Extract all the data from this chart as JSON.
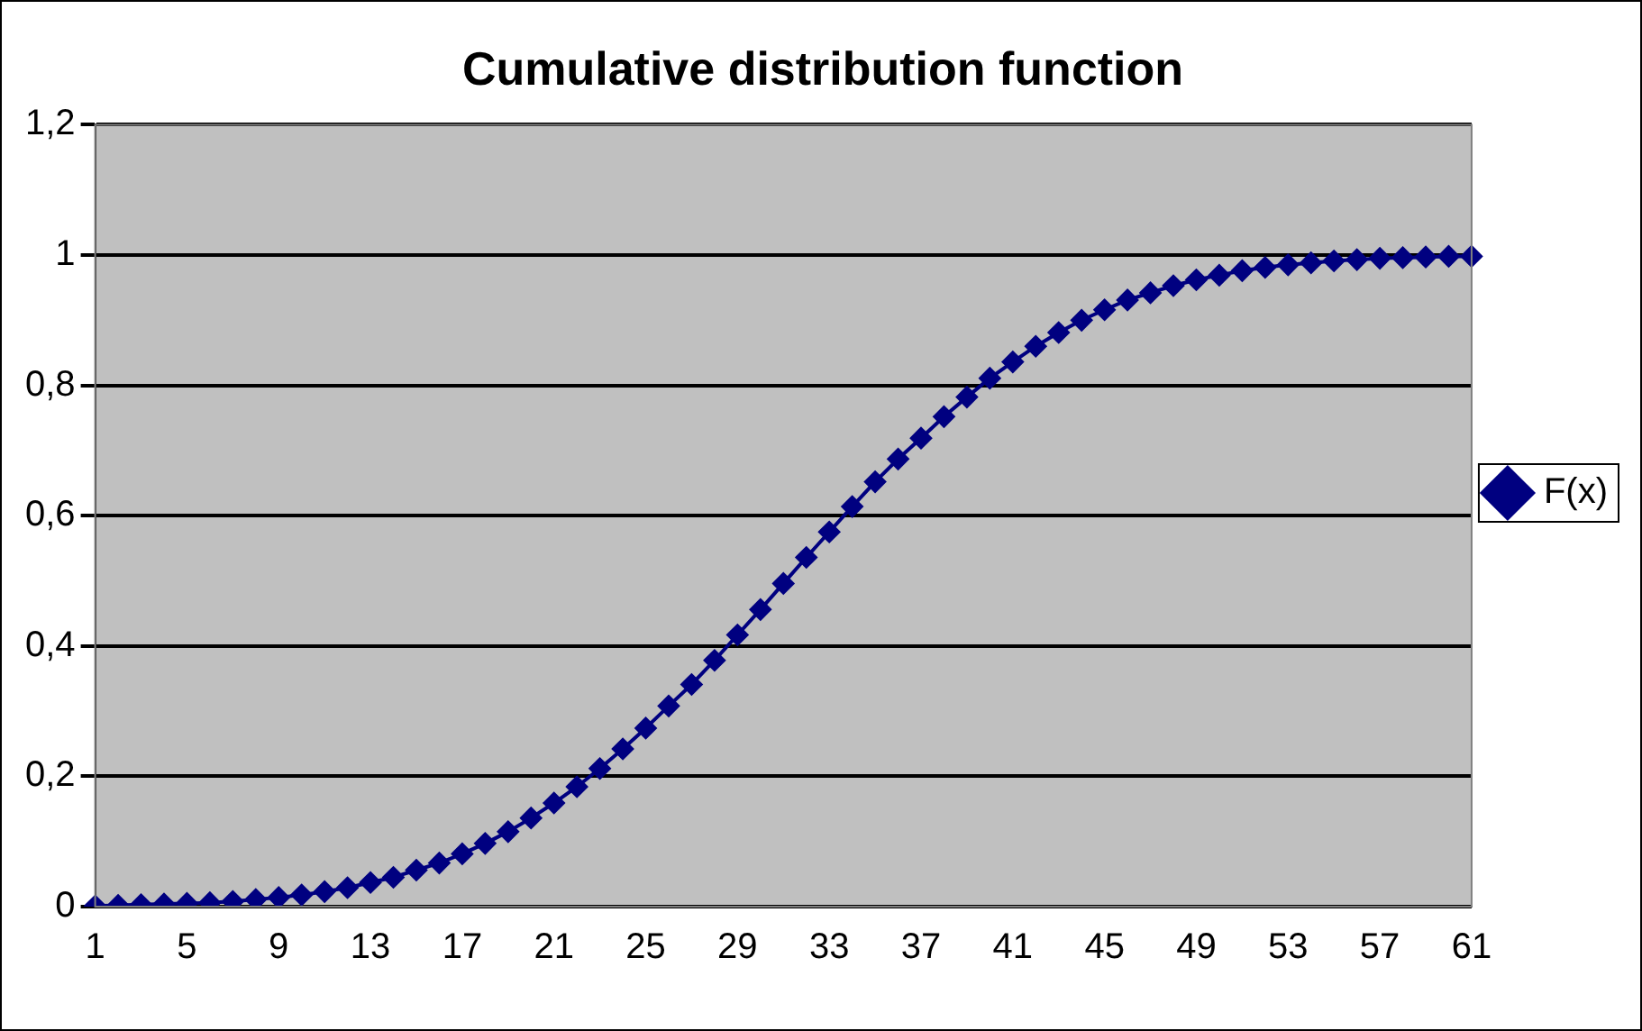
{
  "chart_data": {
    "type": "line",
    "title": "Cumulative distribution function",
    "categories": [
      "1",
      null,
      null,
      null,
      "5",
      null,
      null,
      null,
      "9",
      null,
      null,
      null,
      "13",
      null,
      null,
      null,
      "17",
      null,
      null,
      null,
      "21",
      null,
      null,
      null,
      "25",
      null,
      null,
      null,
      "29",
      null,
      null,
      null,
      "33",
      null,
      null,
      null,
      "37",
      null,
      null,
      null,
      "41",
      null,
      null,
      null,
      "45",
      null,
      null,
      null,
      "49",
      null,
      null,
      null,
      "53",
      null,
      null,
      null,
      "57",
      null,
      null,
      null,
      "61"
    ],
    "series": [
      {
        "name": "F(x)",
        "color": "#000080",
        "values": [
          0.001,
          0.002,
          0.003,
          0.004,
          0.005,
          0.006,
          0.008,
          0.011,
          0.014,
          0.018,
          0.023,
          0.029,
          0.037,
          0.045,
          0.056,
          0.067,
          0.081,
          0.097,
          0.115,
          0.136,
          0.159,
          0.184,
          0.212,
          0.242,
          0.274,
          0.308,
          0.341,
          0.378,
          0.417,
          0.456,
          0.496,
          0.536,
          0.575,
          0.614,
          0.652,
          0.687,
          0.719,
          0.752,
          0.782,
          0.811,
          0.836,
          0.86,
          0.881,
          0.9,
          0.916,
          0.931,
          0.942,
          0.953,
          0.962,
          0.969,
          0.976,
          0.981,
          0.985,
          0.988,
          0.991,
          0.993,
          0.995,
          0.996,
          0.997,
          0.998,
          0.998
        ]
      }
    ],
    "ylim": [
      0,
      1.2
    ],
    "yticks": [
      0,
      {
        "value": 0.2,
        "label": "0,2"
      },
      {
        "value": 0.4,
        "label": "0,4"
      },
      {
        "value": 0.6,
        "label": "0,6"
      },
      {
        "value": 0.8,
        "label": "0,8"
      },
      1,
      {
        "value": 1.2,
        "label": "1,2"
      }
    ],
    "grid": "y",
    "legend": "right",
    "marker": "diamond",
    "line_style": "solid"
  }
}
